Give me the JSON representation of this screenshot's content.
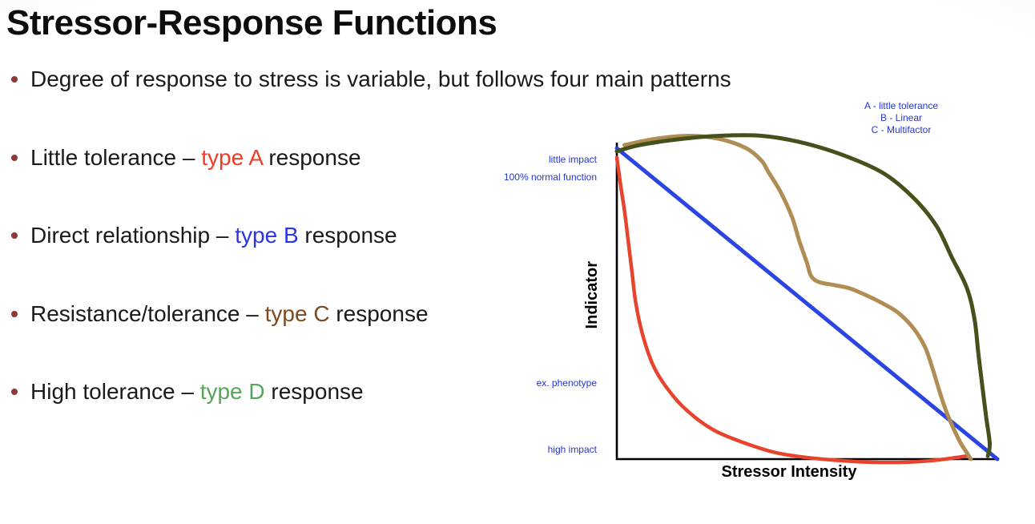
{
  "slide": {
    "title": "Stressor-Response Functions",
    "text_color": "#1a1a1a",
    "bullet_color": "#8e3a32",
    "bullets": [
      {
        "prefix": "Degree of response to stress is variable, but follows four main patterns",
        "highlight": "",
        "suffix": "",
        "highlight_color": "#1a1a1a"
      },
      {
        "prefix": "Little tolerance – ",
        "highlight": "type A",
        "suffix": " response",
        "highlight_color": "#ed3d29"
      },
      {
        "prefix": "Direct relationship – ",
        "highlight": "type B",
        "suffix": " response",
        "highlight_color": "#2b35e6"
      },
      {
        "prefix": "Resistance/tolerance – ",
        "highlight": "type C",
        "suffix": " response",
        "highlight_color": "#7d4a1f"
      },
      {
        "prefix": "High tolerance – ",
        "highlight": "type D",
        "suffix": " response",
        "highlight_color": "#55a55b"
      }
    ]
  },
  "chart_data": {
    "type": "line",
    "title": "",
    "xlabel": "Stressor Intensity",
    "ylabel": "Indicator",
    "x_range": [
      0,
      100
    ],
    "y_range": [
      0,
      100
    ],
    "grid": false,
    "axis_color": "#000000",
    "annotation_color": "#2436cf",
    "legend": {
      "position": "top-right",
      "entries": [
        "A - little tolerance",
        "B - Linear",
        "C - Multifactor"
      ]
    },
    "y_axis_annotations": [
      {
        "label": "little impact",
        "y": 96
      },
      {
        "label": "100% normal function",
        "y": 91
      },
      {
        "label": "ex. phenotype",
        "y": 24
      },
      {
        "label": "high impact",
        "y": 3
      }
    ],
    "series": [
      {
        "name": "type A little tolerance",
        "color": "#e8432c",
        "width": 4.5,
        "points": [
          [
            0,
            97
          ],
          [
            1,
            88
          ],
          [
            2,
            80
          ],
          [
            3,
            70
          ],
          [
            4,
            60
          ],
          [
            5,
            50
          ],
          [
            7,
            39
          ],
          [
            10,
            29
          ],
          [
            15,
            20
          ],
          [
            20,
            14
          ],
          [
            26,
            9
          ],
          [
            34,
            5
          ],
          [
            42,
            2
          ],
          [
            50,
            0.5
          ],
          [
            59,
            -0.5
          ],
          [
            67,
            -1
          ],
          [
            76,
            -1
          ],
          [
            84,
            -0.3
          ],
          [
            92,
            1
          ]
        ]
      },
      {
        "name": "type B linear",
        "color": "#2b45e2",
        "width": 5,
        "points": [
          [
            0,
            100
          ],
          [
            50,
            50
          ],
          [
            100,
            0
          ]
        ]
      },
      {
        "name": "type C multifactor",
        "color": "#b08d55",
        "width": 5,
        "points": [
          [
            2,
            101
          ],
          [
            10,
            103
          ],
          [
            19,
            104
          ],
          [
            27,
            103
          ],
          [
            34,
            100
          ],
          [
            38,
            96
          ],
          [
            40,
            92
          ],
          [
            43,
            86
          ],
          [
            46,
            78
          ],
          [
            48,
            70
          ],
          [
            50,
            63
          ],
          [
            51,
            59
          ],
          [
            53,
            57
          ],
          [
            57,
            56
          ],
          [
            61,
            55
          ],
          [
            65,
            53
          ],
          [
            70,
            50
          ],
          [
            74,
            47
          ],
          [
            78,
            42
          ],
          [
            81,
            36
          ],
          [
            83,
            29
          ],
          [
            85,
            21
          ],
          [
            87,
            14
          ],
          [
            90,
            6
          ],
          [
            92,
            2
          ],
          [
            93,
            0
          ]
        ]
      },
      {
        "name": "type D high tolerance",
        "color": "#44511d",
        "width": 5,
        "points": [
          [
            0,
            99
          ],
          [
            6,
            101
          ],
          [
            17,
            103
          ],
          [
            27,
            104
          ],
          [
            38,
            104
          ],
          [
            48,
            102
          ],
          [
            59,
            98
          ],
          [
            70,
            92
          ],
          [
            78,
            84
          ],
          [
            84,
            75
          ],
          [
            88,
            65
          ],
          [
            92,
            55
          ],
          [
            94,
            45
          ],
          [
            95,
            34
          ],
          [
            96,
            24
          ],
          [
            97,
            14
          ],
          [
            98,
            5
          ],
          [
            97.5,
            1
          ]
        ]
      }
    ]
  }
}
